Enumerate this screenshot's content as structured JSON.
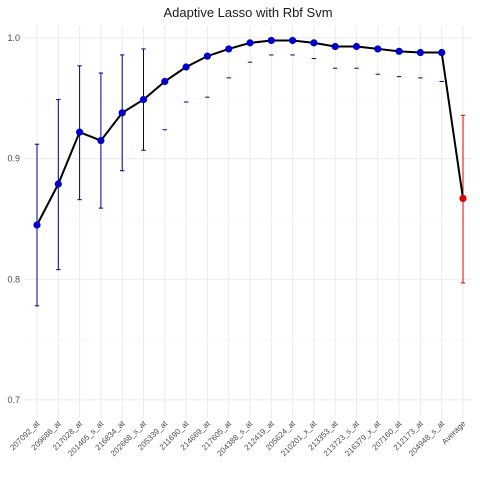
{
  "chart_data": {
    "type": "line",
    "title": "Adaptive Lasso with Rbf Svm",
    "xlabel": "",
    "ylabel": "",
    "ylim": [
      0.685,
      1.01
    ],
    "yticks": [
      0.7,
      0.8,
      0.9,
      1.0
    ],
    "ytick_labels": [
      "0.7",
      "0.8",
      "0.9",
      "1.0"
    ],
    "grid": true,
    "categories": [
      "207092_at",
      "209686_at",
      "217028_at",
      "201465_s_at",
      "216834_at",
      "202668_s_at",
      "205339_at",
      "211690_at",
      "214669_at",
      "217605_at",
      "204388_s_at",
      "212419_at",
      "205624_at",
      "210201_x_at",
      "213353_at",
      "213723_s_at",
      "216379_x_at",
      "207160_at",
      "212173_at",
      "204948_s_at",
      "Average"
    ],
    "values": [
      0.845,
      0.879,
      0.922,
      0.915,
      0.938,
      0.949,
      0.964,
      0.976,
      0.985,
      0.991,
      0.996,
      0.998,
      0.998,
      0.996,
      0.993,
      0.993,
      0.991,
      0.989,
      0.988,
      0.988,
      0.867
    ],
    "error_upper": [
      0.912,
      0.949,
      0.977,
      0.971,
      0.986,
      0.991,
      null,
      null,
      null,
      null,
      null,
      null,
      null,
      null,
      null,
      null,
      null,
      null,
      null,
      null,
      0.936
    ],
    "error_lower": [
      0.778,
      0.808,
      0.866,
      0.859,
      0.89,
      0.907,
      0.924,
      0.947,
      0.951,
      0.967,
      0.98,
      0.986,
      0.986,
      0.983,
      0.975,
      0.975,
      0.97,
      0.968,
      0.967,
      0.964,
      0.797
    ],
    "colors": {
      "line": "#000000",
      "points": "#0000cc",
      "error_bars": "#00008b",
      "average": "#dd0000",
      "grid": "#ebebeb"
    }
  }
}
